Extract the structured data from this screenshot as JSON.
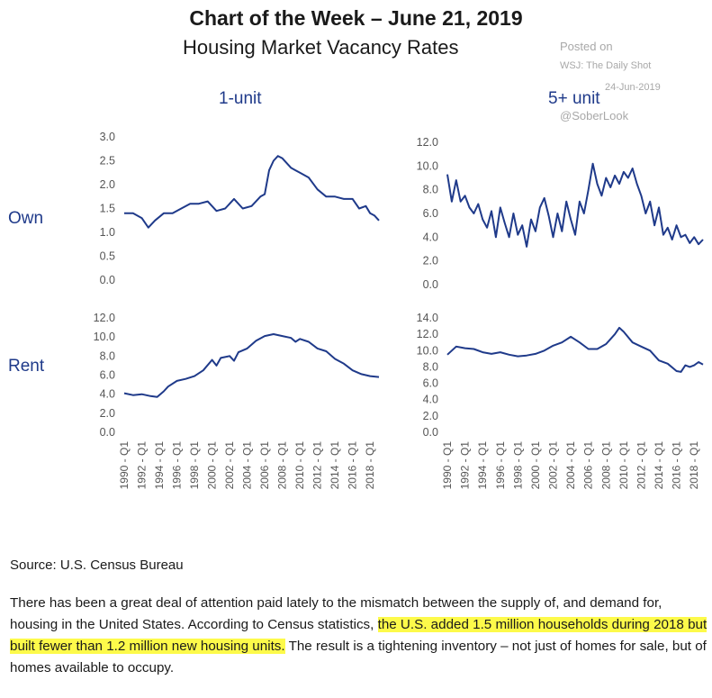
{
  "title": "Chart of the Week – June 21, 2019",
  "subtitle": "Housing Market Vacancy Rates",
  "watermark": {
    "line1": "Posted on",
    "line2": "WSJ: The Daily Shot",
    "line3": "24-Jun-2019",
    "line4": "@SoberLook"
  },
  "column_headers": [
    "1-unit",
    "5+ unit"
  ],
  "row_headers": [
    "Own",
    "Rent"
  ],
  "x_tick_labels": [
    "1990 - Q1",
    "1992 - Q1",
    "1994 - Q1",
    "1996 - Q1",
    "1998 - Q1",
    "2000 - Q1",
    "2002 - Q1",
    "2004 - Q1",
    "2006 - Q1",
    "2008 - Q1",
    "2010 - Q1",
    "2012 - Q1",
    "2014 - Q1",
    "2016 - Q1",
    "2018 - Q1"
  ],
  "source": "Source: U.S. Census Bureau",
  "paragraph": {
    "pre": "There has been a great deal of attention paid lately to the mismatch between the supply of, and demand for, housing in the United States.  According to Census statistics, ",
    "highlight": "the U.S. added 1.5 million households during 2018 but built fewer than 1.2 million new housing units.",
    "post": "  The result is a tightening inventory – not just of homes for sale, but of homes available to occupy."
  },
  "colors": {
    "line": "#1f3a8a",
    "tick_text": "#555555",
    "highlight": "#fdfa4a"
  },
  "chart_data": [
    {
      "type": "line",
      "title": "1-unit",
      "row": "Own",
      "ylim": [
        0,
        3
      ],
      "yticks": [
        "0.0",
        "0.5",
        "1.0",
        "1.5",
        "2.0",
        "2.5",
        "3.0"
      ],
      "show_x_labels": false,
      "x": [
        1990.0,
        1991.0,
        1992.0,
        1992.75,
        1993.5,
        1994.5,
        1995.5,
        1996.5,
        1997.5,
        1998.5,
        1999.5,
        2000.5,
        2001.5,
        2002.5,
        2003.5,
        2004.5,
        2005.5,
        2006.0,
        2006.5,
        2007.0,
        2007.5,
        2008.0,
        2008.5,
        2009.0,
        2009.5,
        2010.0,
        2011.0,
        2012.0,
        2013.0,
        2014.0,
        2015.0,
        2016.0,
        2016.75,
        2017.5,
        2018.0,
        2018.5,
        2019.0
      ],
      "y": [
        1.4,
        1.4,
        1.3,
        1.1,
        1.25,
        1.4,
        1.4,
        1.5,
        1.6,
        1.6,
        1.65,
        1.45,
        1.5,
        1.7,
        1.5,
        1.55,
        1.75,
        1.8,
        2.3,
        2.5,
        2.6,
        2.55,
        2.45,
        2.35,
        2.3,
        2.25,
        2.15,
        1.9,
        1.75,
        1.75,
        1.7,
        1.7,
        1.5,
        1.55,
        1.4,
        1.35,
        1.25
      ]
    },
    {
      "type": "line",
      "title": "5+ unit",
      "row": "Own",
      "ylim": [
        0,
        12
      ],
      "yticks": [
        "0.0",
        "2.0",
        "4.0",
        "6.0",
        "8.0",
        "10.0",
        "12.0"
      ],
      "show_x_labels": false,
      "x": [
        1990.0,
        1990.5,
        1991.0,
        1991.5,
        1992.0,
        1992.5,
        1993.0,
        1993.5,
        1994.0,
        1994.5,
        1995.0,
        1995.5,
        1996.0,
        1996.5,
        1997.0,
        1997.5,
        1998.0,
        1998.5,
        1999.0,
        1999.5,
        2000.0,
        2000.5,
        2001.0,
        2001.5,
        2002.0,
        2002.5,
        2003.0,
        2003.5,
        2004.0,
        2004.5,
        2005.0,
        2005.5,
        2006.0,
        2006.5,
        2007.0,
        2007.5,
        2008.0,
        2008.5,
        2009.0,
        2009.5,
        2010.0,
        2010.5,
        2011.0,
        2011.5,
        2012.0,
        2012.5,
        2013.0,
        2013.5,
        2014.0,
        2014.5,
        2015.0,
        2015.5,
        2016.0,
        2016.5,
        2017.0,
        2017.5,
        2018.0,
        2018.5,
        2019.0
      ],
      "y": [
        9.3,
        7.0,
        8.8,
        7.0,
        7.5,
        6.5,
        6.0,
        6.8,
        5.5,
        4.8,
        6.2,
        4.0,
        6.5,
        5.2,
        4.0,
        6.0,
        4.2,
        5.0,
        3.2,
        5.5,
        4.5,
        6.5,
        7.3,
        5.8,
        4.0,
        6.0,
        4.5,
        7.0,
        5.5,
        4.2,
        7.0,
        6.0,
        8.0,
        10.2,
        8.5,
        7.5,
        9.0,
        8.2,
        9.2,
        8.5,
        9.5,
        9.0,
        9.8,
        8.5,
        7.5,
        6.0,
        7.0,
        5.0,
        6.5,
        4.2,
        4.8,
        3.8,
        5.0,
        4.0,
        4.2,
        3.5,
        4.0,
        3.4,
        3.8
      ]
    },
    {
      "type": "line",
      "title": "1-unit",
      "row": "Rent",
      "ylim": [
        0,
        12
      ],
      "yticks": [
        "0.0",
        "2.0",
        "4.0",
        "6.0",
        "8.0",
        "10.0",
        "12.0"
      ],
      "show_x_labels": true,
      "x": [
        1990.0,
        1991.0,
        1992.0,
        1993.0,
        1993.75,
        1994.5,
        1995.0,
        1996.0,
        1997.0,
        1998.0,
        1999.0,
        2000.0,
        2000.5,
        2001.0,
        2002.0,
        2002.5,
        2003.0,
        2004.0,
        2005.0,
        2006.0,
        2007.0,
        2008.0,
        2009.0,
        2009.5,
        2010.0,
        2011.0,
        2012.0,
        2013.0,
        2014.0,
        2015.0,
        2016.0,
        2017.0,
        2018.0,
        2019.0
      ],
      "y": [
        4.1,
        3.9,
        4.0,
        3.8,
        3.7,
        4.3,
        4.8,
        5.4,
        5.6,
        5.9,
        6.5,
        7.6,
        7.0,
        7.8,
        8.0,
        7.5,
        8.4,
        8.8,
        9.6,
        10.1,
        10.3,
        10.1,
        9.9,
        9.5,
        9.8,
        9.5,
        8.8,
        8.5,
        7.7,
        7.2,
        6.5,
        6.1,
        5.9,
        5.8
      ]
    },
    {
      "type": "line",
      "title": "5+ unit",
      "row": "Rent",
      "ylim": [
        0,
        14
      ],
      "yticks": [
        "0.0",
        "2.0",
        "4.0",
        "6.0",
        "8.0",
        "10.0",
        "12.0",
        "14.0"
      ],
      "show_x_labels": true,
      "x": [
        1990.0,
        1991.0,
        1992.0,
        1993.0,
        1994.0,
        1995.0,
        1996.0,
        1997.0,
        1998.0,
        1999.0,
        2000.0,
        2001.0,
        2002.0,
        2003.0,
        2004.0,
        2005.0,
        2006.0,
        2007.0,
        2008.0,
        2009.0,
        2009.5,
        2010.0,
        2011.0,
        2012.0,
        2013.0,
        2014.0,
        2015.0,
        2016.0,
        2016.5,
        2017.0,
        2017.5,
        2018.0,
        2018.5,
        2019.0
      ],
      "y": [
        9.5,
        10.5,
        10.3,
        10.2,
        9.8,
        9.6,
        9.8,
        9.5,
        9.3,
        9.4,
        9.6,
        10.0,
        10.6,
        11.0,
        11.7,
        11.0,
        10.2,
        10.2,
        10.8,
        12.0,
        12.8,
        12.3,
        11.0,
        10.5,
        10.0,
        8.8,
        8.4,
        7.5,
        7.4,
        8.2,
        8.0,
        8.2,
        8.6,
        8.3
      ]
    }
  ]
}
